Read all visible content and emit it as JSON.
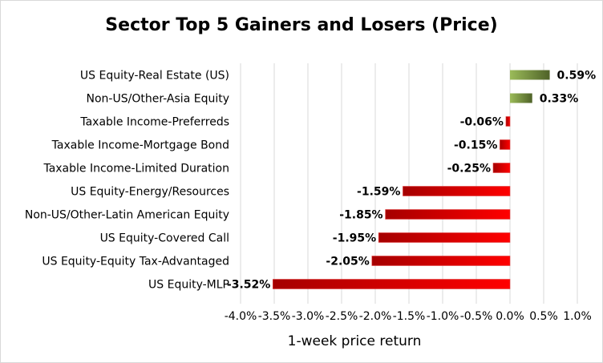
{
  "chart_data": {
    "type": "bar",
    "orientation": "horizontal",
    "title": "Sector Top 5 Gainers and Losers (Price)",
    "xlabel": "1-week price return",
    "ylabel": "",
    "categories": [
      "US Equity-Real Estate (US)",
      "Non-US/Other-Asia Equity",
      "Taxable Income-Preferreds",
      "Taxable Income-Mortgage Bond",
      "Taxable Income-Limited Duration",
      "US Equity-Energy/Resources",
      "Non-US/Other-Latin American Equity",
      "US Equity-Covered Call",
      "US Equity-Equity Tax-Advantaged",
      "US Equity-MLP"
    ],
    "values": [
      0.59,
      0.33,
      -0.06,
      -0.15,
      -0.25,
      -1.59,
      -1.85,
      -1.95,
      -2.05,
      -3.52
    ],
    "data_labels": [
      "0.59%",
      "0.33%",
      "-0.06%",
      "-0.15%",
      "-0.25%",
      "-1.59%",
      "-1.85%",
      "-1.95%",
      "-2.05%",
      "-3.52%"
    ],
    "xlim": [
      -4.0,
      1.0
    ],
    "xticks": [
      -4.0,
      -3.5,
      -3.0,
      -2.5,
      -2.0,
      -1.5,
      -1.0,
      -0.5,
      0.0,
      0.5,
      1.0
    ],
    "xtick_labels": [
      "-4.0%",
      "-3.5%",
      "-3.0%",
      "-2.5%",
      "-2.0%",
      "-1.5%",
      "-1.0%",
      "-0.5%",
      "0.0%",
      "0.5%",
      "1.0%"
    ],
    "grid": "vertical",
    "legend": "none",
    "colors": {
      "positive_dark": "#4f6228",
      "positive_light": "#9bbb59",
      "negative_dark": "#a50000",
      "negative_light": "#ff0000",
      "gridline": "#d9d9d9"
    }
  }
}
